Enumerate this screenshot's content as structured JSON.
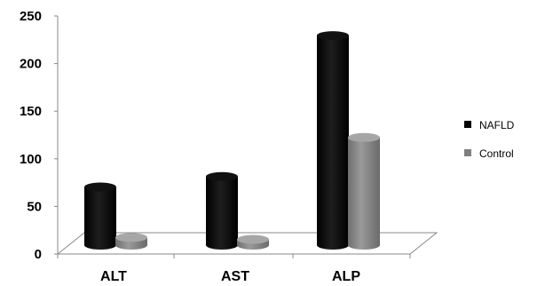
{
  "chart_data": {
    "type": "bar",
    "categories": [
      "ALT",
      "AST",
      "ALP"
    ],
    "series": [
      {
        "name": "NAFLD",
        "values": [
          76,
          87,
          235
        ],
        "color": "#000000"
      },
      {
        "name": "Control",
        "values": [
          23,
          21,
          128
        ],
        "color": "#808080"
      }
    ],
    "ylim": [
      0,
      250
    ],
    "yticks": [
      "0",
      "50",
      "100",
      "150",
      "200",
      "250"
    ],
    "legend_position": "right",
    "grid": false,
    "style": "3d-cylinder"
  }
}
